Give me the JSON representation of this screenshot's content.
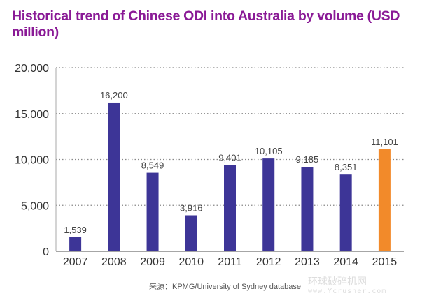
{
  "chart_data": {
    "type": "bar",
    "title": "Historical trend of Chinese ODI into Australia by volume (USD million)",
    "xlabel": "",
    "ylabel": "",
    "categories": [
      "2007",
      "2008",
      "2009",
      "2010",
      "2011",
      "2012",
      "2013",
      "2014",
      "2015"
    ],
    "values": [
      1539,
      16200,
      8549,
      3916,
      9401,
      10105,
      9185,
      8351,
      11101
    ],
    "data_labels": [
      "1,539",
      "16,200",
      "8,549",
      "3,916",
      "9,401",
      "10,105",
      "9,185",
      "8,351",
      "11,101"
    ],
    "ylim": [
      0,
      20000
    ],
    "yticks": [
      0,
      5000,
      10000,
      15000,
      20000
    ],
    "ytick_labels": [
      "0",
      "5,000",
      "10,000",
      "15,000",
      "20,000"
    ],
    "grid": "horizontal-dotted",
    "highlight_index": 8,
    "colors": {
      "bar": "#3d3597",
      "highlight": "#f28a2a",
      "title": "#8a1a96",
      "grid": "#888888"
    }
  },
  "source": "来源：KPMG/University of Sydney database",
  "watermark": {
    "text": "环球破碎机网",
    "url": "www.Ycrusher.com"
  }
}
